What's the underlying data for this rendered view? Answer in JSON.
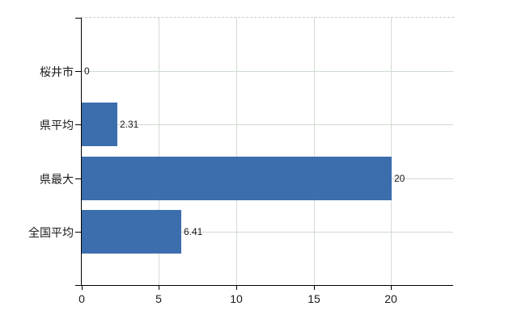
{
  "chart_data": {
    "type": "bar",
    "orientation": "horizontal",
    "title": "",
    "xlabel": "",
    "ylabel": "",
    "categories": [
      "桜井市",
      "県平均",
      "県最大",
      "全国平均"
    ],
    "values": [
      0,
      2.31,
      20,
      6.41
    ],
    "value_labels": [
      "0",
      "2.31",
      "20",
      "6.41"
    ],
    "x_ticks": [
      0,
      5,
      10,
      15,
      20
    ],
    "x_tick_labels": [
      "0",
      "5",
      "10",
      "15",
      "20"
    ],
    "xlim": [
      0,
      24
    ],
    "grid": "on",
    "legend": "none",
    "colors": {
      "bar": "#3c6eae",
      "grid_horizontal": "#cfdccf",
      "grid_vertical": "#d4dcd4",
      "top_border": "#c9c9c9",
      "axis": "#000000",
      "text": "#1a1a1a"
    }
  }
}
